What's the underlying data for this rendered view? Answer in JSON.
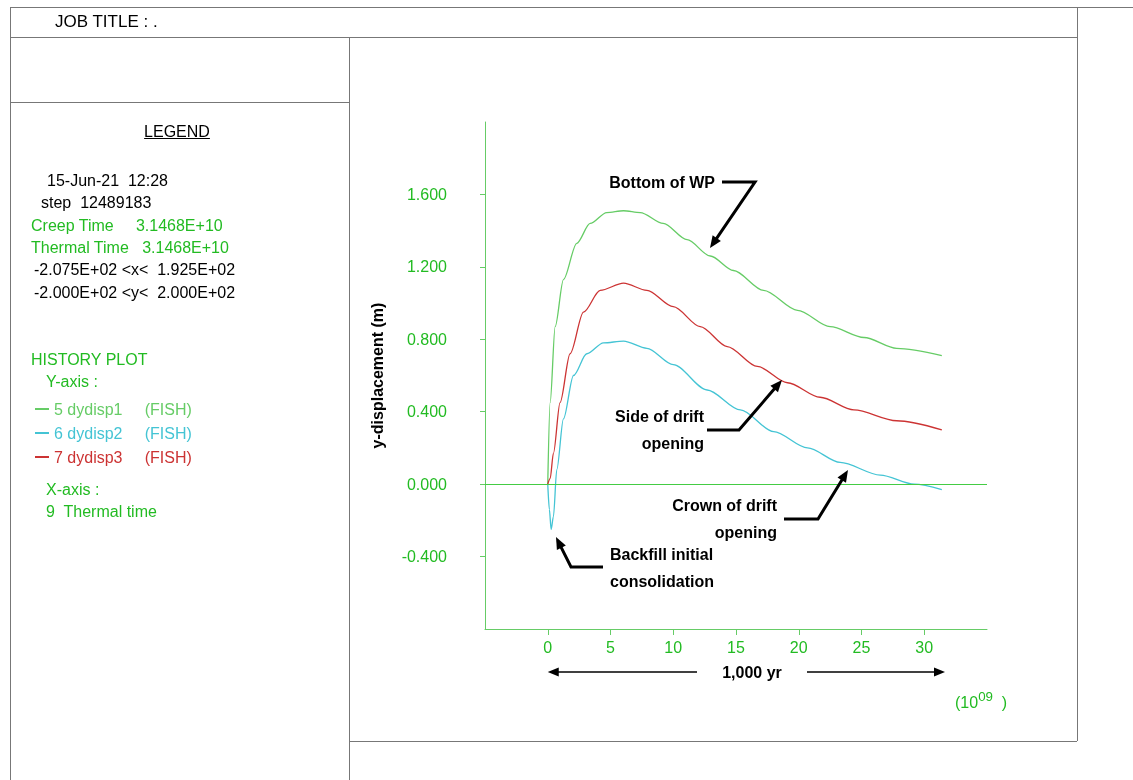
{
  "chart_data": {
    "type": "line",
    "xlabel": "1,000 yr",
    "ylabel": "y-displacement (m)",
    "annotations": [
      "JOB TITLE : .",
      "LEGEND",
      "15-Jun-21  12:28",
      "step  12489183",
      "Creep Time     3.1468E+10",
      "Thermal Time   3.1468E+10",
      "-2.075E+02 <x<  1.925E+02",
      "-2.000E+02 <y<  2.000E+02",
      "HISTORY PLOT",
      "Y-axis :",
      "X-axis :",
      "9  Thermal time",
      "(10$^{09}$  )",
      "Bottom of WP",
      "Side of drift opening",
      "Crown of drift opening",
      "Backfill initial consolidation"
    ],
    "series": [
      {
        "name": "5 dydisp1     (FISH)",
        "color": "#66cc66",
        "x": [
          0,
          0.19,
          0.59,
          1.25,
          2.31,
          3.38,
          4.7,
          6.04,
          7.37,
          9.2,
          11.1,
          12.95,
          14.8,
          17.2,
          19.9,
          22.5,
          25.2,
          27.8,
          31.4
        ],
        "values": [
          0,
          0.45,
          0.87,
          1.13,
          1.33,
          1.44,
          1.5,
          1.51,
          1.5,
          1.44,
          1.35,
          1.26,
          1.18,
          1.07,
          0.96,
          0.87,
          0.81,
          0.75,
          0.71
        ]
      },
      {
        "name": "6 dydisp2     (FISH)",
        "color": "#44c4d4",
        "x": [
          0,
          0.13,
          0.27,
          0.45,
          0.72,
          1.25,
          2.05,
          3.11,
          4.44,
          6.04,
          7.9,
          10,
          12.7,
          15.35,
          18,
          20.7,
          23.3,
          26.5,
          29.2,
          31.4
        ],
        "values": [
          0,
          -0.14,
          -0.25,
          -0.18,
          0.08,
          0.36,
          0.6,
          0.72,
          0.78,
          0.79,
          0.75,
          0.66,
          0.52,
          0.41,
          0.29,
          0.2,
          0.12,
          0.05,
          0,
          -0.03
        ]
      },
      {
        "name": "7 dydisp3     (FISH)",
        "color": "#cc3333",
        "x": [
          0,
          0.19,
          0.45,
          0.98,
          1.78,
          2.85,
          4.18,
          6.04,
          7.9,
          10,
          12.15,
          14.3,
          16.7,
          19.1,
          21.7,
          24.4,
          27.8,
          31.4
        ],
        "values": [
          0,
          0.03,
          0.17,
          0.45,
          0.72,
          0.95,
          1.07,
          1.11,
          1.07,
          0.98,
          0.87,
          0.76,
          0.65,
          0.56,
          0.48,
          0.41,
          0.35,
          0.3
        ]
      }
    ],
    "xlim": [
      -5,
      35
    ],
    "xticks": [
      0,
      5,
      10,
      15,
      20,
      25,
      30
    ],
    "ylim": [
      -0.8,
      2.0
    ],
    "yticks": [
      {
        "value": -0.4,
        "label": "-0.400"
      },
      {
        "value": 0,
        "label": "0.000"
      },
      {
        "value": 0.4,
        "label": "0.400"
      },
      {
        "value": 0.8,
        "label": "0.800"
      },
      {
        "value": 1.2,
        "label": "1.200"
      },
      {
        "value": 1.6,
        "label": "1.600"
      }
    ],
    "ref_lines": [
      {
        "axis": "y",
        "value": 0,
        "color": "#44cc44"
      }
    ],
    "grid": false,
    "legend": "left",
    "marker": "none",
    "line_style": "solid"
  }
}
